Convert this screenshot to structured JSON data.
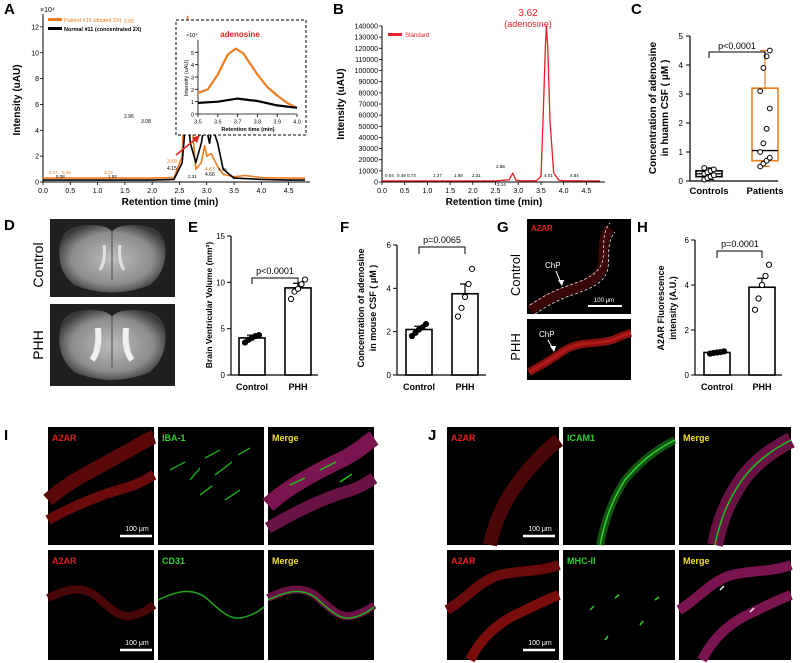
{
  "panels": {
    "A": {
      "letter": "A",
      "y_exponent": "×10⁴",
      "legend": [
        "Patient #15 (diluted 2X)",
        "Normal #11 (concentrated 2X)"
      ],
      "ylabel": "Intensity (uAU)",
      "xlabel": "Retention time (min)",
      "inset_title": "adenosine",
      "inset_exponent": "×10⁴",
      "inset_ylabel": "Intensity (uAU)",
      "inset_xlabel": "Retention time (min)",
      "peak_labels": {
        "p1": "2.65",
        "p2": "2.96",
        "p3": "3.08",
        "p4": "3.69",
        "p5": "4.15",
        "p6": "4.67",
        "p7": "4.66",
        "p8": "0.17",
        "p9": "0.48",
        "p10": "3.23",
        "p11": "0.38",
        "p12": "1.92",
        "p13": "2.31",
        "p14": "4.75"
      },
      "colors": {
        "patient": "#ee7d20",
        "normal": "#000000",
        "arrow": "#e02020"
      }
    },
    "B": {
      "letter": "B",
      "legend": "Standard",
      "ylabel": "Intensity (uAU)",
      "xlabel": "Retention time (min)",
      "peak_time": "3.62",
      "peak_name": "(adenosine)",
      "minor_labels": [
        "0.04",
        "0.48",
        "0.73",
        "1.37",
        "1.88",
        "2.31",
        "2.88",
        "3.14",
        "4.01",
        "4.84"
      ],
      "color": "#e8202a"
    },
    "C": {
      "letter": "C",
      "ylabel": [
        "Concentration of adenosine",
        "in huamn CSF ( μM )"
      ],
      "pvalue": "p<0.0001",
      "groups": [
        "Controls",
        "Patients"
      ]
    },
    "D": {
      "letter": "D",
      "labels": [
        "Control",
        "PHH"
      ]
    },
    "E": {
      "letter": "E",
      "ylabel": "Brain Ventricular Volume (mm³)",
      "pvalue": "p<0.0001",
      "groups": [
        "Control",
        "PHH"
      ]
    },
    "F": {
      "letter": "F",
      "ylabel": [
        "Concentration of adenosine",
        "in mouse CSF ( μM )"
      ],
      "pvalue": "p=0.0065",
      "groups": [
        "Control",
        "PHH"
      ]
    },
    "G": {
      "letter": "G",
      "stain": "A2AR",
      "labels": [
        "Control",
        "PHH"
      ],
      "chp": "ChP",
      "scale": "100 μm"
    },
    "H": {
      "letter": "H",
      "ylabel": [
        "A2AR Fluorescence",
        "intensity (A.U.)"
      ],
      "pvalue": "p=0.0001",
      "groups": [
        "Control",
        "PHH"
      ]
    },
    "I": {
      "letter": "I",
      "row1": [
        "A2AR",
        "IBA-1",
        "Merge"
      ],
      "row2": [
        "A2AR",
        "CD31",
        "Merge"
      ],
      "scale": "100 μm"
    },
    "J": {
      "letter": "J",
      "row1": [
        "A2AR",
        "ICAM1",
        "Merge"
      ],
      "row2": [
        "A2AR",
        "MHC-II",
        "Merge"
      ],
      "scale": "100 μm"
    }
  },
  "chart_data": [
    {
      "panel": "A",
      "type": "line",
      "title": "",
      "xlabel": "Retention time (min)",
      "ylabel": "Intensity (uAU) ×10⁴",
      "xlim": [
        0,
        4.8
      ],
      "ylim": [
        0,
        13
      ],
      "xticks": [
        0.0,
        0.5,
        1.0,
        1.5,
        2.0,
        2.5,
        3.0,
        3.5,
        4.0,
        4.5
      ],
      "yticks": [
        0,
        2,
        4,
        6,
        8,
        10,
        12
      ],
      "series": [
        {
          "name": "Patient #15 (diluted 2X)",
          "color": "#ee7d20",
          "x": [
            0,
            0.5,
            1.0,
            1.5,
            2.0,
            2.4,
            2.55,
            2.6,
            2.65,
            2.7,
            2.8,
            2.9,
            2.96,
            3.0,
            3.08,
            3.2,
            3.3,
            3.5,
            3.7,
            4.0,
            4.5,
            4.8
          ],
          "y": [
            0.3,
            0.3,
            0.3,
            0.3,
            0.3,
            0.35,
            2.0,
            8.0,
            12.8,
            6.0,
            1.0,
            1.5,
            2.8,
            2.0,
            2.2,
            1.2,
            0.6,
            0.4,
            0.5,
            0.35,
            0.3,
            0.3
          ]
        },
        {
          "name": "Normal #11 (concentrated 2X)",
          "color": "#000000",
          "x": [
            0,
            0.5,
            1.0,
            1.5,
            2.0,
            2.4,
            2.55,
            2.6,
            2.65,
            2.7,
            2.8,
            2.9,
            2.96,
            3.0,
            3.05,
            3.1,
            3.2,
            3.3,
            3.5,
            4.0,
            4.5,
            4.8
          ],
          "y": [
            0.15,
            0.15,
            0.15,
            0.15,
            0.15,
            0.2,
            1.5,
            4.0,
            5.0,
            3.0,
            1.5,
            3.0,
            4.5,
            4.0,
            3.0,
            4.3,
            3.0,
            1.0,
            0.3,
            0.2,
            0.15,
            0.15
          ]
        }
      ]
    },
    {
      "panel": "A-inset",
      "type": "line",
      "title": "adenosine",
      "xlabel": "Retention time (min)",
      "ylabel": "Intensity (uAU) ×10⁴",
      "xlim": [
        3.5,
        4.0
      ],
      "ylim": [
        0,
        6
      ],
      "xticks": [
        3.5,
        3.6,
        3.7,
        3.8,
        3.9,
        4.0
      ],
      "yticks": [
        0,
        1,
        2,
        3,
        4,
        5
      ],
      "series": [
        {
          "name": "Patient #15 (diluted 2X)",
          "color": "#ee7d20",
          "x": [
            3.5,
            3.55,
            3.6,
            3.65,
            3.69,
            3.73,
            3.8,
            3.85,
            3.9,
            3.95,
            4.0
          ],
          "y": [
            1.7,
            2.0,
            3.2,
            4.8,
            5.3,
            4.9,
            3.2,
            2.2,
            1.5,
            0.9,
            0.5
          ]
        },
        {
          "name": "Normal #11 (concentrated 2X)",
          "color": "#000000",
          "x": [
            3.5,
            3.6,
            3.7,
            3.8,
            3.9,
            4.0
          ],
          "y": [
            0.9,
            1.0,
            1.25,
            1.05,
            0.7,
            0.5
          ]
        }
      ]
    },
    {
      "panel": "B",
      "type": "line",
      "title": "",
      "xlabel": "Retention time (min)",
      "ylabel": "Intensity (uAU)",
      "xlim": [
        0,
        4.8
      ],
      "ylim": [
        0,
        140000
      ],
      "xticks": [
        0.0,
        0.5,
        1.0,
        1.5,
        2.0,
        2.5,
        3.0,
        3.5,
        4.0,
        4.5
      ],
      "yticks": [
        0,
        10000,
        20000,
        30000,
        40000,
        50000,
        60000,
        70000,
        80000,
        90000,
        100000,
        110000,
        120000,
        130000,
        140000
      ],
      "series": [
        {
          "name": "Standard",
          "color": "#e8202a",
          "x": [
            0,
            0.5,
            1.0,
            1.5,
            2.0,
            2.5,
            2.8,
            2.88,
            2.95,
            3.1,
            3.4,
            3.5,
            3.55,
            3.6,
            3.62,
            3.65,
            3.7,
            3.78,
            3.9,
            4.0,
            4.5,
            4.8
          ],
          "y": [
            1000,
            1000,
            1000,
            1000,
            1000,
            1000,
            2000,
            8000,
            1500,
            1000,
            1200,
            5000,
            60000,
            125000,
            140000,
            120000,
            55000,
            8000,
            1500,
            1200,
            1000,
            1000
          ]
        }
      ]
    },
    {
      "panel": "C",
      "type": "box",
      "title": "",
      "ylabel": "Concentration of adenosine in huamn CSF ( μM )",
      "ylim": [
        0,
        5
      ],
      "yticks": [
        0,
        1,
        2,
        3,
        4,
        5
      ],
      "categories": [
        "Controls",
        "Patients"
      ],
      "boxes": [
        {
          "name": "Controls",
          "min": 0.05,
          "q1": 0.15,
          "median": 0.25,
          "q3": 0.35,
          "max": 0.45,
          "points": [
            0.05,
            0.1,
            0.15,
            0.2,
            0.25,
            0.3,
            0.35,
            0.4,
            0.45
          ]
        },
        {
          "name": "Patients",
          "min": 0.5,
          "q1": 0.7,
          "median": 1.05,
          "q3": 3.2,
          "max": 4.5,
          "points": [
            0.5,
            0.6,
            0.7,
            0.8,
            1.0,
            1.3,
            1.8,
            2.5,
            3.1,
            3.9,
            4.3,
            4.5
          ]
        }
      ],
      "significance": "p<0.0001"
    },
    {
      "panel": "E",
      "type": "bar",
      "title": "",
      "ylabel": "Brain Ventricular Volume (mm³)",
      "ylim": [
        0,
        15
      ],
      "yticks": [
        0,
        5,
        10,
        15
      ],
      "categories": [
        "Control",
        "PHH"
      ],
      "values": [
        4.0,
        9.4
      ],
      "errors": [
        0.3,
        0.5
      ],
      "points": [
        [
          3.5,
          3.8,
          4.0,
          4.2,
          4.3
        ],
        [
          8.2,
          9.0,
          9.3,
          9.8,
          10.3
        ]
      ],
      "significance": "p<0.0001"
    },
    {
      "panel": "F",
      "type": "bar",
      "title": "",
      "ylabel": "Concentration of adenosine in mouse CSF ( μM )",
      "ylim": [
        0,
        6
      ],
      "yticks": [
        0,
        2,
        4,
        6
      ],
      "categories": [
        "Control",
        "PHH"
      ],
      "values": [
        2.1,
        3.75
      ],
      "errors": [
        0.15,
        0.45
      ],
      "points": [
        [
          1.8,
          1.95,
          2.1,
          2.2,
          2.35
        ],
        [
          2.7,
          3.1,
          3.6,
          4.2,
          4.9
        ]
      ],
      "significance": "p=0.0065"
    },
    {
      "panel": "H",
      "type": "bar",
      "title": "",
      "ylabel": "A2AR Fluorescence intensity (A.U.)",
      "ylim": [
        0,
        6
      ],
      "yticks": [
        0,
        2,
        4,
        6
      ],
      "categories": [
        "Control",
        "PHH"
      ],
      "values": [
        1.0,
        3.9
      ],
      "errors": [
        0.05,
        0.4
      ],
      "points": [
        [
          0.95,
          0.98,
          1.0,
          1.02,
          1.05
        ],
        [
          2.9,
          3.4,
          4.0,
          4.4,
          4.9
        ]
      ],
      "significance": "p=0.0001"
    }
  ]
}
